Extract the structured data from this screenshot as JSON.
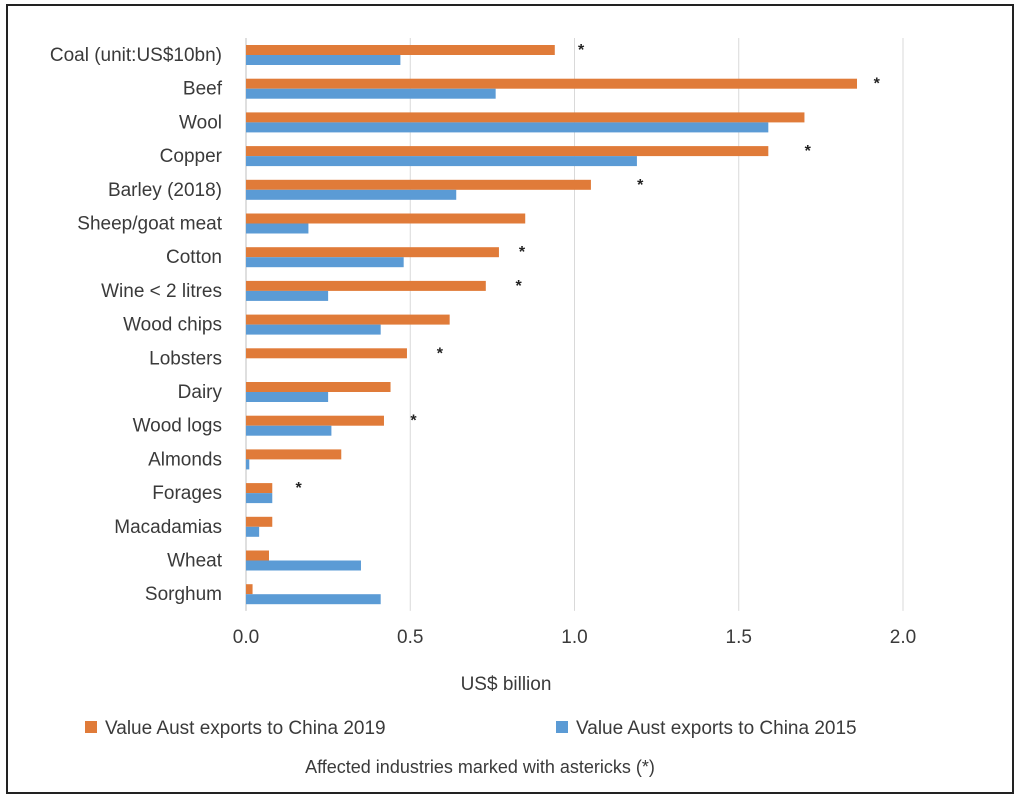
{
  "chart_data": {
    "type": "bar",
    "orientation": "horizontal",
    "categories": [
      "Coal (unit:US$10bn)",
      "Beef",
      "Wool",
      "Copper",
      "Barley (2018)",
      "Sheep/goat meat",
      "Cotton",
      "Wine < 2 litres",
      "Wood chips",
      "Lobsters",
      "Dairy",
      "Wood logs",
      "Almonds",
      "Forages",
      "Macadamias",
      "Wheat",
      "Sorghum"
    ],
    "series": [
      {
        "name": "Value Aust exports to China 2019",
        "color": "#E07B39",
        "values": [
          0.94,
          1.86,
          1.7,
          1.59,
          1.05,
          0.85,
          0.77,
          0.73,
          0.62,
          0.49,
          0.44,
          0.42,
          0.29,
          0.08,
          0.08,
          0.07,
          0.02
        ]
      },
      {
        "name": "Value Aust exports to China 2015",
        "color": "#5B9BD5",
        "values": [
          0.47,
          0.76,
          1.59,
          1.19,
          0.64,
          0.19,
          0.48,
          0.25,
          0.41,
          0.0,
          0.25,
          0.26,
          0.01,
          0.08,
          0.04,
          0.35,
          0.41
        ]
      }
    ],
    "affected": [
      true,
      true,
      false,
      true,
      true,
      false,
      true,
      true,
      false,
      true,
      false,
      true,
      false,
      true,
      false,
      false,
      false
    ],
    "asterisk_positions": [
      1.02,
      1.92,
      null,
      1.71,
      1.2,
      null,
      0.84,
      0.83,
      null,
      0.59,
      null,
      0.51,
      null,
      0.16,
      null,
      null,
      null
    ],
    "asterisk_symbol": "*",
    "xlabel": "US$ billion",
    "ylabel": "",
    "xlim": [
      0,
      2.0
    ],
    "xticks": [
      "0.0",
      "0.5",
      "1.0",
      "1.5",
      "2.0"
    ],
    "xtick_values": [
      0,
      0.5,
      1.0,
      1.5,
      2.0
    ],
    "grid": true,
    "legend_position": "bottom",
    "note": "Affected industries marked with astericks (*)"
  }
}
